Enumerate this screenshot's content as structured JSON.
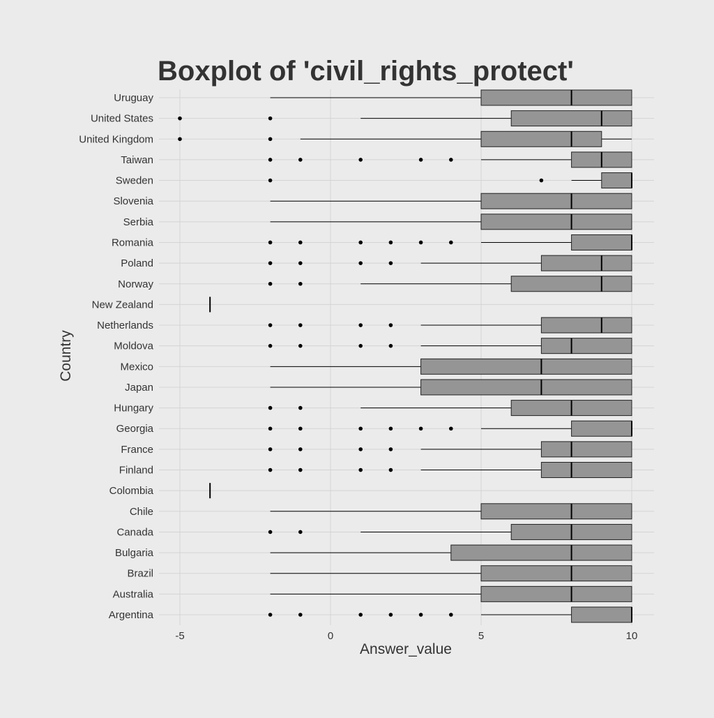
{
  "chart_data": {
    "type": "boxplot",
    "title": "Boxplot of 'civil_rights_protect'",
    "xlabel": "Answer_value",
    "ylabel": "Country",
    "xlim": [
      -5.5,
      10.7
    ],
    "x_ticks": [
      -5,
      0,
      5,
      10
    ],
    "grid": true,
    "legend": "none",
    "colors": {
      "box_fill": "#959595",
      "background": "#ebebeb",
      "grid": "#d4d4d4",
      "text": "#333333"
    },
    "categories": [
      "Argentina",
      "Australia",
      "Brazil",
      "Bulgaria",
      "Canada",
      "Chile",
      "Colombia",
      "Finland",
      "France",
      "Georgia",
      "Hungary",
      "Japan",
      "Mexico",
      "Moldova",
      "Netherlands",
      "New Zealand",
      "Norway",
      "Poland",
      "Romania",
      "Serbia",
      "Slovenia",
      "Sweden",
      "Taiwan",
      "United Kingdom",
      "United States",
      "Uruguay"
    ],
    "boxes": [
      {
        "category": "Argentina",
        "whisker_low": 5,
        "q1": 8,
        "median": 10,
        "q3": 10,
        "whisker_high": 10,
        "outliers": [
          -2,
          -1,
          1,
          2,
          3,
          4
        ]
      },
      {
        "category": "Australia",
        "whisker_low": -2,
        "q1": 5,
        "median": 8,
        "q3": 10,
        "whisker_high": 10,
        "outliers": []
      },
      {
        "category": "Brazil",
        "whisker_low": -2,
        "q1": 5,
        "median": 8,
        "q3": 10,
        "whisker_high": 10,
        "outliers": []
      },
      {
        "category": "Bulgaria",
        "whisker_low": -2,
        "q1": 4,
        "median": 8,
        "q3": 10,
        "whisker_high": 10,
        "outliers": []
      },
      {
        "category": "Canada",
        "whisker_low": 1,
        "q1": 6,
        "median": 8,
        "q3": 10,
        "whisker_high": 10,
        "outliers": [
          -2,
          -1
        ]
      },
      {
        "category": "Chile",
        "whisker_low": -2,
        "q1": 5,
        "median": 8,
        "q3": 10,
        "whisker_high": 10,
        "outliers": []
      },
      {
        "category": "Colombia",
        "whisker_low": -4,
        "q1": -4,
        "median": -4,
        "q3": -4,
        "whisker_high": -4,
        "outliers": []
      },
      {
        "category": "Finland",
        "whisker_low": 3,
        "q1": 7,
        "median": 8,
        "q3": 10,
        "whisker_high": 10,
        "outliers": [
          -2,
          -1,
          1,
          2
        ]
      },
      {
        "category": "France",
        "whisker_low": 3,
        "q1": 7,
        "median": 8,
        "q3": 10,
        "whisker_high": 10,
        "outliers": [
          -2,
          -1,
          1,
          2
        ]
      },
      {
        "category": "Georgia",
        "whisker_low": 5,
        "q1": 8,
        "median": 10,
        "q3": 10,
        "whisker_high": 10,
        "outliers": [
          -2,
          -1,
          1,
          2,
          3,
          4
        ]
      },
      {
        "category": "Hungary",
        "whisker_low": 1,
        "q1": 6,
        "median": 8,
        "q3": 10,
        "whisker_high": 10,
        "outliers": [
          -2,
          -1
        ]
      },
      {
        "category": "Japan",
        "whisker_low": -2,
        "q1": 3,
        "median": 7,
        "q3": 10,
        "whisker_high": 10,
        "outliers": []
      },
      {
        "category": "Mexico",
        "whisker_low": -2,
        "q1": 3,
        "median": 7,
        "q3": 10,
        "whisker_high": 10,
        "outliers": []
      },
      {
        "category": "Moldova",
        "whisker_low": 3,
        "q1": 7,
        "median": 8,
        "q3": 10,
        "whisker_high": 10,
        "outliers": [
          -2,
          -1,
          1,
          2
        ]
      },
      {
        "category": "Netherlands",
        "whisker_low": 3,
        "q1": 7,
        "median": 9,
        "q3": 10,
        "whisker_high": 10,
        "outliers": [
          -2,
          -1,
          1,
          2
        ]
      },
      {
        "category": "New Zealand",
        "whisker_low": -4,
        "q1": -4,
        "median": -4,
        "q3": -4,
        "whisker_high": -4,
        "outliers": []
      },
      {
        "category": "Norway",
        "whisker_low": 1,
        "q1": 6,
        "median": 9,
        "q3": 10,
        "whisker_high": 10,
        "outliers": [
          -2,
          -1
        ]
      },
      {
        "category": "Poland",
        "whisker_low": 3,
        "q1": 7,
        "median": 9,
        "q3": 10,
        "whisker_high": 10,
        "outliers": [
          -2,
          -1,
          1,
          2
        ]
      },
      {
        "category": "Romania",
        "whisker_low": 5,
        "q1": 8,
        "median": 10,
        "q3": 10,
        "whisker_high": 10,
        "outliers": [
          -2,
          -1,
          1,
          2,
          3,
          4
        ]
      },
      {
        "category": "Serbia",
        "whisker_low": -2,
        "q1": 5,
        "median": 8,
        "q3": 10,
        "whisker_high": 10,
        "outliers": []
      },
      {
        "category": "Slovenia",
        "whisker_low": -2,
        "q1": 5,
        "median": 8,
        "q3": 10,
        "whisker_high": 10,
        "outliers": []
      },
      {
        "category": "Sweden",
        "whisker_low": 8,
        "q1": 9,
        "median": 10,
        "q3": 10,
        "whisker_high": 10,
        "outliers": [
          -2,
          7
        ]
      },
      {
        "category": "Taiwan",
        "whisker_low": 5,
        "q1": 8,
        "median": 9,
        "q3": 10,
        "whisker_high": 10,
        "outliers": [
          -2,
          -1,
          1,
          3,
          4
        ]
      },
      {
        "category": "United Kingdom",
        "whisker_low": -1,
        "q1": 5,
        "median": 8,
        "q3": 9,
        "whisker_high": 10,
        "outliers": [
          -5,
          -2
        ]
      },
      {
        "category": "United States",
        "whisker_low": 1,
        "q1": 6,
        "median": 9,
        "q3": 10,
        "whisker_high": 10,
        "outliers": [
          -5,
          -2
        ]
      },
      {
        "category": "Uruguay",
        "whisker_low": -2,
        "q1": 5,
        "median": 8,
        "q3": 10,
        "whisker_high": 10,
        "outliers": []
      }
    ]
  }
}
